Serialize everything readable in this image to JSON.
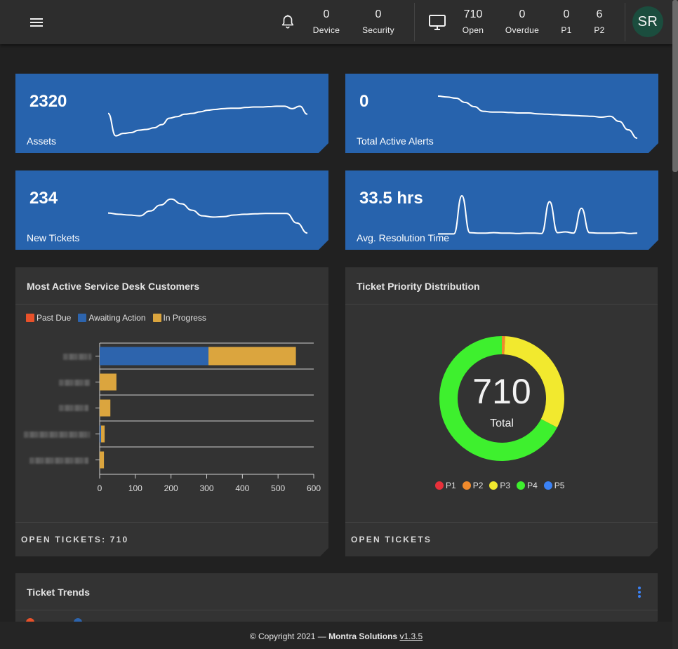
{
  "topbar": {
    "device": {
      "value": "0",
      "label": "Device"
    },
    "security": {
      "value": "0",
      "label": "Security"
    },
    "open": {
      "value": "710",
      "label": "Open"
    },
    "overdue": {
      "value": "0",
      "label": "Overdue"
    },
    "p1": {
      "value": "0",
      "label": "P1"
    },
    "p2": {
      "value": "6",
      "label": "P2"
    },
    "avatar_initials": "SR",
    "icons": {
      "menu": "hamburger-menu-icon",
      "alerts": "bell-icon",
      "tickets": "monitor-icon"
    }
  },
  "kpis": [
    {
      "value": "2320",
      "label": "Assets"
    },
    {
      "value": "0",
      "label": "Total Active Alerts"
    },
    {
      "value": "234",
      "label": "New Tickets"
    },
    {
      "value": "33.5 hrs",
      "label": "Avg. Resolution Time"
    }
  ],
  "colors": {
    "card_blue": "#2763ad",
    "past_due": "#e8512a",
    "awaiting_action": "#2d64ad",
    "in_progress": "#dba53e",
    "p1": "#e8303a",
    "p2": "#f08a2c",
    "p3": "#f2e92e",
    "p4": "#3ef02e",
    "p5": "#3b82f6",
    "avatar_bg": "#1b4d3e"
  },
  "customers_panel": {
    "title": "Most Active Service Desk Customers",
    "footer": "OPEN TICKETS: 710",
    "legend": [
      "Past Due",
      "Awaiting Action",
      "In Progress"
    ]
  },
  "priority_panel": {
    "title": "Ticket Priority Distribution",
    "footer": "OPEN TICKETS",
    "center_value": "710",
    "center_label": "Total"
  },
  "trends_panel": {
    "title": "Ticket Trends"
  },
  "footer": {
    "copyright": "© Copyright 2021 —",
    "company": "Montra Solutions",
    "version": "v1.3.5"
  },
  "chart_data": [
    {
      "type": "bar",
      "orientation": "horizontal",
      "stacked": true,
      "title": "Most Active Service Desk Customers",
      "categories": [
        "",
        "",
        "",
        "",
        ""
      ],
      "series": [
        {
          "name": "Past Due",
          "values": [
            0,
            0,
            0,
            0,
            0
          ]
        },
        {
          "name": "Awaiting Action",
          "values": [
            305,
            0,
            0,
            4,
            0
          ]
        },
        {
          "name": "In Progress",
          "values": [
            245,
            47,
            30,
            10,
            12
          ]
        }
      ],
      "xlim": [
        0,
        600
      ],
      "xticks": [
        0,
        100,
        200,
        300,
        400,
        500,
        600
      ],
      "legend": "top-left"
    },
    {
      "type": "pie",
      "donut": true,
      "title": "Ticket Priority Distribution",
      "labels": [
        "P1",
        "P2",
        "P3",
        "P4",
        "P5"
      ],
      "values": [
        0,
        6,
        226,
        478,
        0
      ],
      "legend": "bottom"
    },
    {
      "type": "line",
      "name": "Assets sparkline",
      "values": [
        62,
        6,
        12,
        14,
        20,
        22,
        26,
        34,
        50,
        54,
        60,
        62,
        66,
        70,
        72,
        74,
        75,
        75,
        77,
        78,
        78,
        79,
        80,
        80,
        74,
        80,
        60
      ]
    },
    {
      "type": "line",
      "name": "Total Active Alerts sparkline",
      "values": [
        100,
        98,
        95,
        85,
        75,
        64,
        62,
        62,
        61,
        60,
        60,
        58,
        57,
        56,
        55,
        54,
        53,
        52,
        50,
        52,
        40,
        20,
        0
      ]
    },
    {
      "type": "line",
      "name": "New Tickets sparkline",
      "values": [
        55,
        52,
        50,
        48,
        60,
        75,
        90,
        78,
        62,
        48,
        45,
        46,
        50,
        52,
        53,
        54,
        54,
        54,
        30,
        5
      ]
    },
    {
      "type": "line",
      "name": "Avg. Resolution Time sparkline",
      "values": [
        3,
        3,
        3,
        100,
        6,
        5,
        5,
        6,
        5,
        5,
        4,
        5,
        5,
        4,
        85,
        6,
        8,
        5,
        68,
        6,
        5,
        5,
        5,
        6,
        4,
        5
      ]
    }
  ]
}
